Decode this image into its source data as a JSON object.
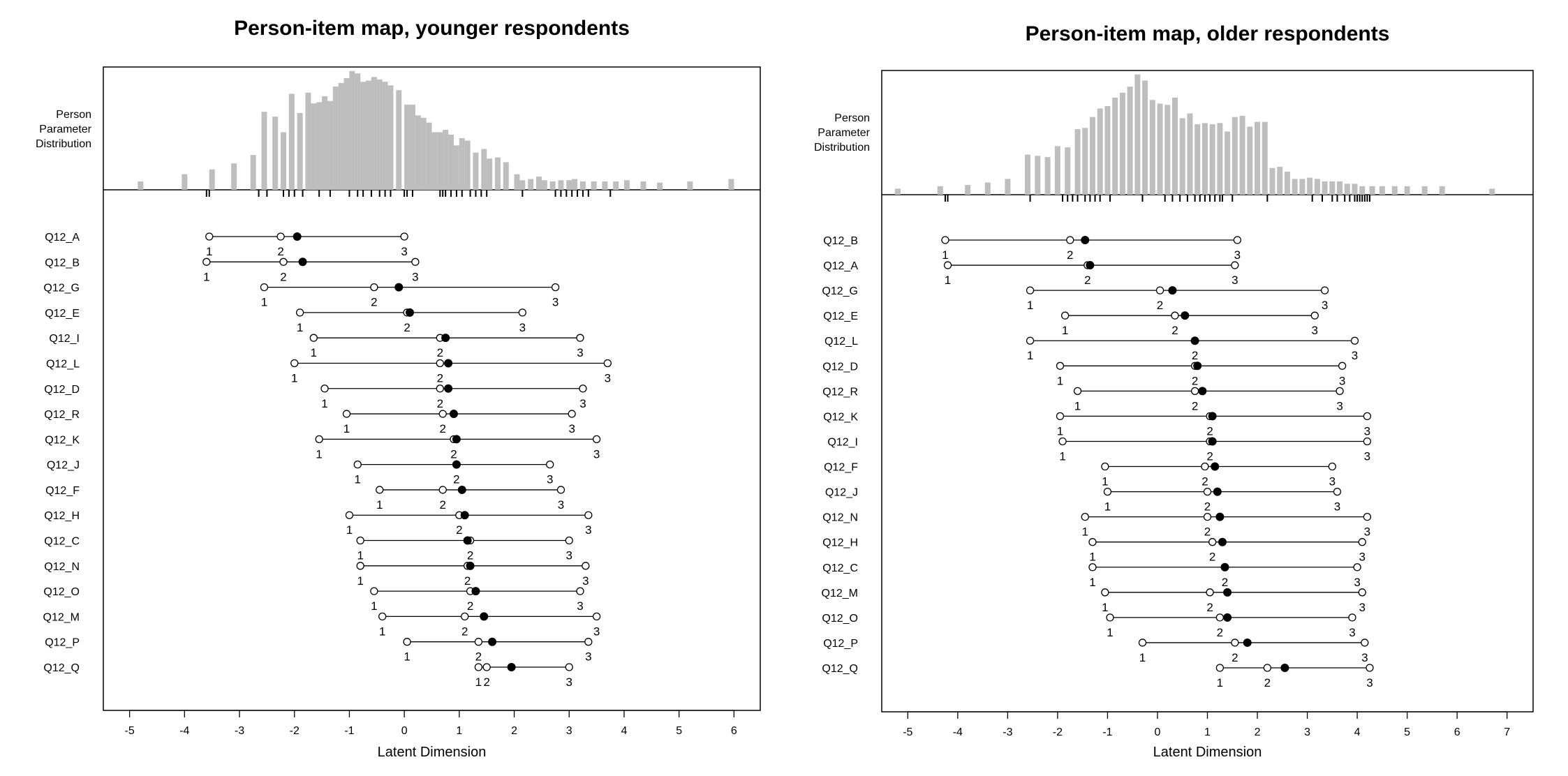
{
  "chart_data": [
    {
      "type": "scatter",
      "title": "Person-item map, younger respondents",
      "xlabel": "Latent Dimension",
      "dist_label": [
        "Person",
        "Parameter",
        "Distribution"
      ],
      "xlim": [
        -5,
        6
      ],
      "xticks": [
        -5,
        -4,
        -3,
        -2,
        -1,
        0,
        1,
        2,
        3,
        4,
        5,
        6
      ],
      "hist": [
        {
          "x": -4.8,
          "h": 0.07
        },
        {
          "x": -4.0,
          "h": 0.13
        },
        {
          "x": -3.5,
          "h": 0.17
        },
        {
          "x": -3.1,
          "h": 0.22
        },
        {
          "x": -2.75,
          "h": 0.29
        },
        {
          "x": -2.55,
          "h": 0.65
        },
        {
          "x": -2.35,
          "h": 0.61
        },
        {
          "x": -2.2,
          "h": 0.48
        },
        {
          "x": -2.05,
          "h": 0.8
        },
        {
          "x": -1.9,
          "h": 0.64
        },
        {
          "x": -1.75,
          "h": 0.81
        },
        {
          "x": -1.65,
          "h": 0.72
        },
        {
          "x": -1.55,
          "h": 0.73
        },
        {
          "x": -1.45,
          "h": 0.78
        },
        {
          "x": -1.35,
          "h": 0.74
        },
        {
          "x": -1.25,
          "h": 0.86
        },
        {
          "x": -1.15,
          "h": 0.89
        },
        {
          "x": -1.05,
          "h": 0.93
        },
        {
          "x": -0.95,
          "h": 0.99
        },
        {
          "x": -0.85,
          "h": 0.97
        },
        {
          "x": -0.75,
          "h": 0.9
        },
        {
          "x": -0.65,
          "h": 0.91
        },
        {
          "x": -0.55,
          "h": 0.94
        },
        {
          "x": -0.45,
          "h": 0.92
        },
        {
          "x": -0.35,
          "h": 0.9
        },
        {
          "x": -0.25,
          "h": 0.87
        },
        {
          "x": -0.1,
          "h": 0.83
        },
        {
          "x": 0.05,
          "h": 0.71
        },
        {
          "x": 0.15,
          "h": 0.71
        },
        {
          "x": 0.25,
          "h": 0.62
        },
        {
          "x": 0.35,
          "h": 0.6
        },
        {
          "x": 0.45,
          "h": 0.56
        },
        {
          "x": 0.55,
          "h": 0.48
        },
        {
          "x": 0.65,
          "h": 0.48
        },
        {
          "x": 0.75,
          "h": 0.5
        },
        {
          "x": 0.85,
          "h": 0.46
        },
        {
          "x": 0.95,
          "h": 0.37
        },
        {
          "x": 1.05,
          "h": 0.43
        },
        {
          "x": 1.15,
          "h": 0.41
        },
        {
          "x": 1.3,
          "h": 0.31
        },
        {
          "x": 1.45,
          "h": 0.34
        },
        {
          "x": 1.55,
          "h": 0.26
        },
        {
          "x": 1.7,
          "h": 0.27
        },
        {
          "x": 1.85,
          "h": 0.23
        },
        {
          "x": 2.05,
          "h": 0.13
        },
        {
          "x": 2.15,
          "h": 0.08
        },
        {
          "x": 2.3,
          "h": 0.09
        },
        {
          "x": 2.45,
          "h": 0.11
        },
        {
          "x": 2.55,
          "h": 0.08
        },
        {
          "x": 2.7,
          "h": 0.07
        },
        {
          "x": 2.85,
          "h": 0.08
        },
        {
          "x": 3.0,
          "h": 0.08
        },
        {
          "x": 3.1,
          "h": 0.09
        },
        {
          "x": 3.25,
          "h": 0.07
        },
        {
          "x": 3.45,
          "h": 0.07
        },
        {
          "x": 3.65,
          "h": 0.07
        },
        {
          "x": 3.85,
          "h": 0.07
        },
        {
          "x": 4.05,
          "h": 0.08
        },
        {
          "x": 4.35,
          "h": 0.07
        },
        {
          "x": 4.65,
          "h": 0.06
        },
        {
          "x": 5.2,
          "h": 0.07
        },
        {
          "x": 5.95,
          "h": 0.09
        }
      ],
      "rug": [
        -3.6,
        -3.55,
        -2.65,
        -2.5,
        -2.2,
        -2.1,
        -2.0,
        -1.85,
        -1.55,
        -1.35,
        -1.0,
        -0.85,
        -0.75,
        -0.6,
        -0.45,
        -0.35,
        -0.25,
        0.0,
        0.05,
        0.15,
        0.65,
        0.7,
        0.75,
        0.85,
        0.95,
        1.05,
        1.2,
        1.3,
        1.4,
        1.5,
        2.15,
        2.75,
        2.85,
        2.95,
        3.05,
        3.15,
        3.25,
        3.35,
        3.75
      ],
      "items": [
        {
          "name": "Q12_A",
          "thresholds": [
            -3.55,
            -2.25,
            0.0
          ],
          "location": -1.95
        },
        {
          "name": "Q12_B",
          "thresholds": [
            -3.6,
            -2.2,
            0.2
          ],
          "location": -1.85
        },
        {
          "name": "Q12_G",
          "thresholds": [
            -2.55,
            -0.55,
            2.75
          ],
          "location": -0.1
        },
        {
          "name": "Q12_E",
          "thresholds": [
            -1.9,
            0.05,
            2.15
          ],
          "location": 0.1
        },
        {
          "name": "Q12_I",
          "thresholds": [
            -1.65,
            0.65,
            3.2
          ],
          "location": 0.75
        },
        {
          "name": "Q12_L",
          "thresholds": [
            -2.0,
            0.65,
            3.7
          ],
          "location": 0.8
        },
        {
          "name": "Q12_D",
          "thresholds": [
            -1.45,
            0.65,
            3.25
          ],
          "location": 0.8
        },
        {
          "name": "Q12_R",
          "thresholds": [
            -1.05,
            0.7,
            3.05
          ],
          "location": 0.9
        },
        {
          "name": "Q12_K",
          "thresholds": [
            -1.55,
            0.9,
            3.5
          ],
          "location": 0.95
        },
        {
          "name": "Q12_J",
          "thresholds": [
            -0.85,
            0.95,
            2.65
          ],
          "location": 0.95
        },
        {
          "name": "Q12_F",
          "thresholds": [
            -0.45,
            0.7,
            2.85
          ],
          "location": 1.05
        },
        {
          "name": "Q12_H",
          "thresholds": [
            -1.0,
            1.0,
            3.35
          ],
          "location": 1.1
        },
        {
          "name": "Q12_C",
          "thresholds": [
            -0.8,
            1.2,
            3.0
          ],
          "location": 1.15
        },
        {
          "name": "Q12_N",
          "thresholds": [
            -0.8,
            1.15,
            3.3
          ],
          "location": 1.2
        },
        {
          "name": "Q12_O",
          "thresholds": [
            -0.55,
            1.2,
            3.2
          ],
          "location": 1.3
        },
        {
          "name": "Q12_M",
          "thresholds": [
            -0.4,
            1.1,
            3.5
          ],
          "location": 1.45
        },
        {
          "name": "Q12_P",
          "thresholds": [
            0.05,
            1.35,
            3.35
          ],
          "location": 1.6
        },
        {
          "name": "Q12_Q",
          "thresholds": [
            1.35,
            1.5,
            3.0
          ],
          "location": 1.95
        }
      ]
    },
    {
      "type": "scatter",
      "title": "Person-item map, older respondents",
      "xlabel": "Latent Dimension",
      "dist_label": [
        "Person",
        "Parameter",
        "Distribution"
      ],
      "xlim": [
        -5,
        7
      ],
      "xticks": [
        -5,
        -4,
        -3,
        -2,
        -1,
        0,
        1,
        2,
        3,
        4,
        5,
        6,
        7
      ],
      "hist": [
        {
          "x": -5.2,
          "h": 0.05
        },
        {
          "x": -4.35,
          "h": 0.07
        },
        {
          "x": -3.8,
          "h": 0.08
        },
        {
          "x": -3.4,
          "h": 0.1
        },
        {
          "x": -3.0,
          "h": 0.13
        },
        {
          "x": -2.6,
          "h": 0.33
        },
        {
          "x": -2.4,
          "h": 0.32
        },
        {
          "x": -2.2,
          "h": 0.31
        },
        {
          "x": -2.0,
          "h": 0.4
        },
        {
          "x": -1.8,
          "h": 0.39
        },
        {
          "x": -1.6,
          "h": 0.54
        },
        {
          "x": -1.45,
          "h": 0.55
        },
        {
          "x": -1.3,
          "h": 0.64
        },
        {
          "x": -1.15,
          "h": 0.71
        },
        {
          "x": -1.0,
          "h": 0.73
        },
        {
          "x": -0.85,
          "h": 0.8
        },
        {
          "x": -0.7,
          "h": 0.84
        },
        {
          "x": -0.55,
          "h": 0.89
        },
        {
          "x": -0.4,
          "h": 0.99
        },
        {
          "x": -0.25,
          "h": 0.94
        },
        {
          "x": -0.1,
          "h": 0.78
        },
        {
          "x": 0.05,
          "h": 0.75
        },
        {
          "x": 0.2,
          "h": 0.74
        },
        {
          "x": 0.35,
          "h": 0.8
        },
        {
          "x": 0.5,
          "h": 0.63
        },
        {
          "x": 0.65,
          "h": 0.67
        },
        {
          "x": 0.8,
          "h": 0.58
        },
        {
          "x": 0.95,
          "h": 0.59
        },
        {
          "x": 1.1,
          "h": 0.58
        },
        {
          "x": 1.25,
          "h": 0.59
        },
        {
          "x": 1.4,
          "h": 0.52
        },
        {
          "x": 1.55,
          "h": 0.64
        },
        {
          "x": 1.7,
          "h": 0.65
        },
        {
          "x": 1.85,
          "h": 0.56
        },
        {
          "x": 2.0,
          "h": 0.6
        },
        {
          "x": 2.15,
          "h": 0.6
        },
        {
          "x": 2.3,
          "h": 0.22
        },
        {
          "x": 2.45,
          "h": 0.23
        },
        {
          "x": 2.6,
          "h": 0.19
        },
        {
          "x": 2.75,
          "h": 0.13
        },
        {
          "x": 2.9,
          "h": 0.13
        },
        {
          "x": 3.05,
          "h": 0.14
        },
        {
          "x": 3.2,
          "h": 0.13
        },
        {
          "x": 3.35,
          "h": 0.11
        },
        {
          "x": 3.5,
          "h": 0.11
        },
        {
          "x": 3.65,
          "h": 0.11
        },
        {
          "x": 3.8,
          "h": 0.09
        },
        {
          "x": 3.95,
          "h": 0.09
        },
        {
          "x": 4.1,
          "h": 0.07
        },
        {
          "x": 4.3,
          "h": 0.07
        },
        {
          "x": 4.5,
          "h": 0.07
        },
        {
          "x": 4.75,
          "h": 0.07
        },
        {
          "x": 5.0,
          "h": 0.07
        },
        {
          "x": 5.35,
          "h": 0.07
        },
        {
          "x": 5.7,
          "h": 0.07
        },
        {
          "x": 6.7,
          "h": 0.05
        }
      ],
      "rug": [
        -4.25,
        -4.2,
        -2.55,
        -1.9,
        -1.8,
        -1.7,
        -1.6,
        -1.45,
        -1.35,
        -1.25,
        -1.15,
        -0.95,
        -0.3,
        0.15,
        0.3,
        0.45,
        0.6,
        0.75,
        0.85,
        0.95,
        1.05,
        1.15,
        1.25,
        1.3,
        1.5,
        2.2,
        3.1,
        3.3,
        3.5,
        3.6,
        3.75,
        3.85,
        3.95,
        4.0,
        4.05,
        4.1,
        4.15,
        4.2,
        4.25
      ],
      "items": [
        {
          "name": "Q12_B",
          "thresholds": [
            -4.25,
            -1.75,
            1.6
          ],
          "location": -1.45
        },
        {
          "name": "Q12_A",
          "thresholds": [
            -4.2,
            -1.4,
            1.55
          ],
          "location": -1.35
        },
        {
          "name": "Q12_G",
          "thresholds": [
            -2.55,
            0.05,
            3.35
          ],
          "location": 0.3
        },
        {
          "name": "Q12_E",
          "thresholds": [
            -1.85,
            0.35,
            3.15
          ],
          "location": 0.55
        },
        {
          "name": "Q12_L",
          "thresholds": [
            -2.55,
            0.75,
            3.95
          ],
          "location": 0.75
        },
        {
          "name": "Q12_D",
          "thresholds": [
            -1.95,
            0.75,
            3.7
          ],
          "location": 0.8
        },
        {
          "name": "Q12_R",
          "thresholds": [
            -1.6,
            0.75,
            3.65
          ],
          "location": 0.9
        },
        {
          "name": "Q12_K",
          "thresholds": [
            -1.95,
            1.05,
            4.2
          ],
          "location": 1.1
        },
        {
          "name": "Q12_I",
          "thresholds": [
            -1.9,
            1.05,
            4.2
          ],
          "location": 1.1
        },
        {
          "name": "Q12_F",
          "thresholds": [
            -1.05,
            0.95,
            3.5
          ],
          "location": 1.15
        },
        {
          "name": "Q12_J",
          "thresholds": [
            -1.0,
            1.0,
            3.6
          ],
          "location": 1.2
        },
        {
          "name": "Q12_N",
          "thresholds": [
            -1.45,
            1.0,
            4.2
          ],
          "location": 1.25
        },
        {
          "name": "Q12_H",
          "thresholds": [
            -1.3,
            1.1,
            4.1
          ],
          "location": 1.3
        },
        {
          "name": "Q12_C",
          "thresholds": [
            -1.3,
            1.35,
            4.0
          ],
          "location": 1.35
        },
        {
          "name": "Q12_M",
          "thresholds": [
            -1.05,
            1.05,
            4.1
          ],
          "location": 1.4
        },
        {
          "name": "Q12_O",
          "thresholds": [
            -0.95,
            1.25,
            3.9
          ],
          "location": 1.4
        },
        {
          "name": "Q12_P",
          "thresholds": [
            -0.3,
            1.55,
            4.15
          ],
          "location": 1.8
        },
        {
          "name": "Q12_Q",
          "thresholds": [
            1.25,
            2.2,
            4.25
          ],
          "location": 2.55
        }
      ]
    }
  ]
}
